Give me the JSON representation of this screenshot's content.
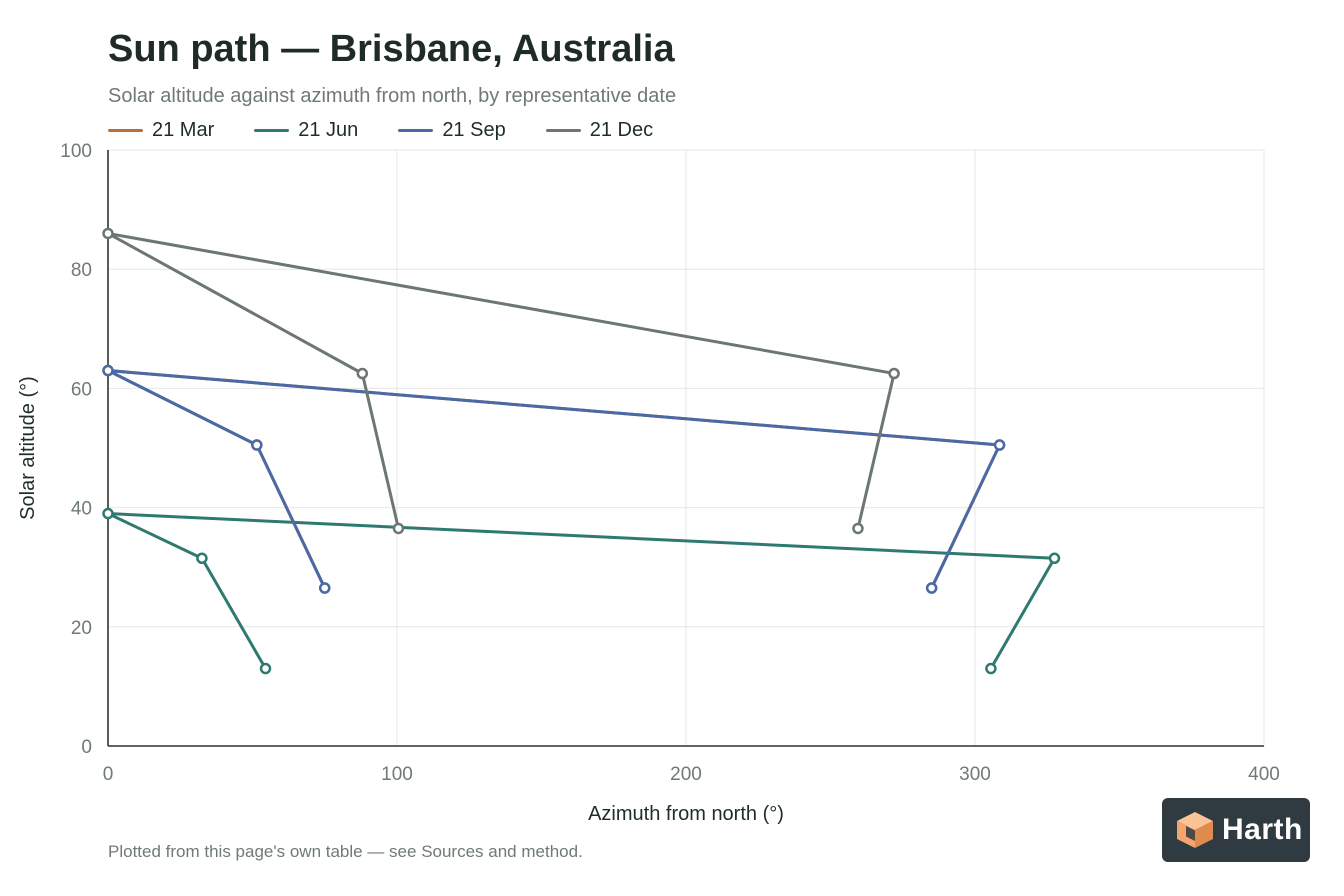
{
  "header": {
    "title": "Sun path — Brisbane, Australia",
    "subtitle": "Solar altitude against azimuth from north, by representative date"
  },
  "footer": {
    "note": "Plotted from this page's own table — see Sources and method."
  },
  "brand": {
    "name": "Harth",
    "icon": "cube-logo-icon",
    "accent": "#f5a46b",
    "background": "#2f3a41"
  },
  "chart_data": {
    "type": "line",
    "xlabel": "Azimuth from north (°)",
    "ylabel": "Solar altitude (°)",
    "xlim": [
      0,
      400
    ],
    "ylim": [
      0,
      100
    ],
    "x_ticks": [
      0,
      100,
      200,
      300,
      400
    ],
    "y_ticks": [
      0,
      20,
      40,
      60,
      80,
      100
    ],
    "grid": true,
    "legend_position": "top-left",
    "series": [
      {
        "name": "21 Mar",
        "color": "#b9703f",
        "points": [
          {
            "x": 75,
            "y": 26.5
          },
          {
            "x": 51.5,
            "y": 50.5
          },
          {
            "x": 0,
            "y": 63
          },
          {
            "x": 308.5,
            "y": 50.5
          },
          {
            "x": 285,
            "y": 26.5
          }
        ]
      },
      {
        "name": "21 Jun",
        "color": "#2e7a70",
        "points": [
          {
            "x": 54.5,
            "y": 13
          },
          {
            "x": 32.5,
            "y": 31.5
          },
          {
            "x": 0,
            "y": 39
          },
          {
            "x": 327.5,
            "y": 31.5
          },
          {
            "x": 305.5,
            "y": 13
          }
        ]
      },
      {
        "name": "21 Sep",
        "color": "#4a6aa6",
        "points": [
          {
            "x": 75,
            "y": 26.5
          },
          {
            "x": 51.5,
            "y": 50.5
          },
          {
            "x": 0,
            "y": 63
          },
          {
            "x": 308.5,
            "y": 50.5
          },
          {
            "x": 285,
            "y": 26.5
          }
        ]
      },
      {
        "name": "21 Dec",
        "color": "#6c7772",
        "points": [
          {
            "x": 100.5,
            "y": 36.5
          },
          {
            "x": 88,
            "y": 62.5
          },
          {
            "x": 0,
            "y": 86
          },
          {
            "x": 272,
            "y": 62.5
          },
          {
            "x": 259.5,
            "y": 36.5
          }
        ]
      }
    ]
  }
}
